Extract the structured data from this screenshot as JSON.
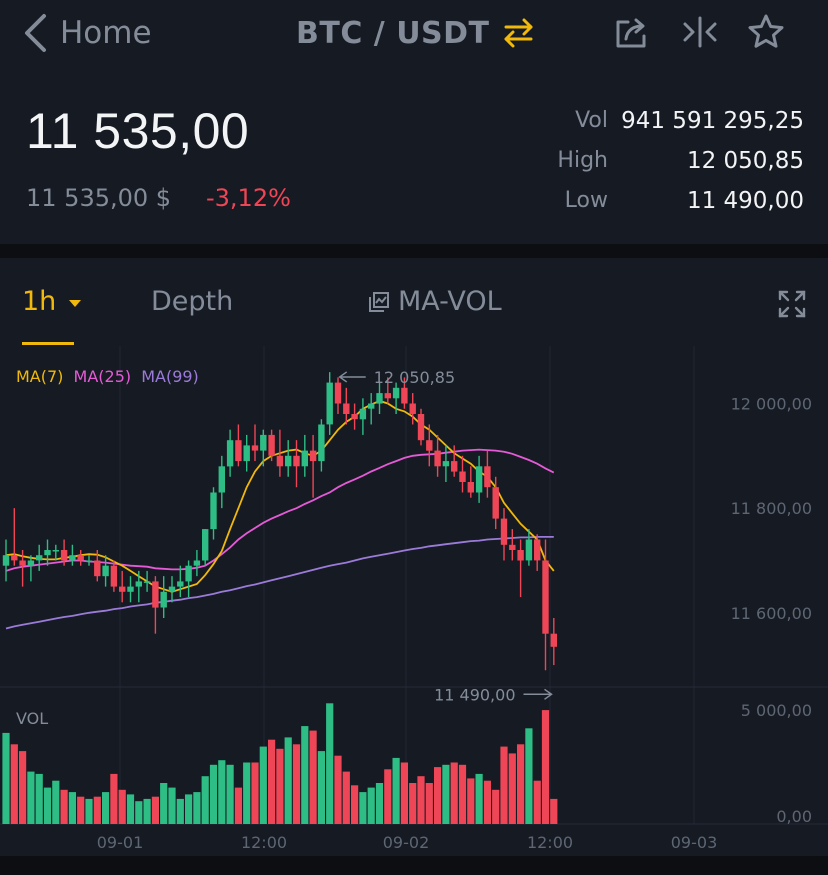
{
  "header": {
    "back_label": "Home",
    "pair": "BTC / USDT",
    "icons": [
      "chevron-left-icon",
      "swap-icon",
      "share-icon",
      "compare-icon",
      "star-icon"
    ]
  },
  "ticker": {
    "last_price": "11 535,00",
    "fiat_price": "11 535,00 $",
    "change": "-3,12%",
    "vol_label": "Vol",
    "vol_value": "941 591 295,25",
    "high_label": "High",
    "high_value": "12 050,85",
    "low_label": "Low",
    "low_value": "11 490,00"
  },
  "tabs": {
    "interval": "1h",
    "depth": "Depth",
    "indicator": "MA-VOL"
  },
  "colors": {
    "up": "#2ebd85",
    "down": "#ee4656",
    "ma7": "#f0b90b",
    "ma25": "#e55ad7",
    "ma99": "#9b7bda",
    "accent": "#f0b90b"
  },
  "chart_data": {
    "type": "candlestick",
    "legend": [
      "MA(7)",
      "MA(25)",
      "MA(99)"
    ],
    "y_ticks": [
      "12 000,00",
      "11 800,00",
      "11 600,00"
    ],
    "y_range": [
      11460,
      12110
    ],
    "x_ticks": [
      "09-01",
      "12:00",
      "09-02",
      "12:00",
      "09-03"
    ],
    "high_marker": "12 050,85",
    "low_marker": "11 490,00",
    "candles": [
      [
        11690,
        11740,
        11660,
        11710
      ],
      [
        11710,
        11800,
        11690,
        11700
      ],
      [
        11700,
        11720,
        11650,
        11690
      ],
      [
        11690,
        11710,
        11660,
        11700
      ],
      [
        11700,
        11730,
        11680,
        11710
      ],
      [
        11710,
        11740,
        11690,
        11720
      ],
      [
        11720,
        11730,
        11700,
        11720
      ],
      [
        11720,
        11740,
        11690,
        11700
      ],
      [
        11700,
        11730,
        11690,
        11710
      ],
      [
        11710,
        11720,
        11690,
        11700
      ],
      [
        11700,
        11710,
        11690,
        11700
      ],
      [
        11700,
        11720,
        11660,
        11670
      ],
      [
        11670,
        11710,
        11650,
        11690
      ],
      [
        11690,
        11700,
        11640,
        11650
      ],
      [
        11650,
        11680,
        11620,
        11640
      ],
      [
        11640,
        11670,
        11620,
        11650
      ],
      [
        11650,
        11680,
        11620,
        11660
      ],
      [
        11660,
        11680,
        11640,
        11660
      ],
      [
        11660,
        11670,
        11560,
        11610
      ],
      [
        11610,
        11670,
        11590,
        11640
      ],
      [
        11640,
        11670,
        11620,
        11650
      ],
      [
        11650,
        11690,
        11630,
        11660
      ],
      [
        11660,
        11700,
        11630,
        11690
      ],
      [
        11690,
        11720,
        11670,
        11700
      ],
      [
        11700,
        11760,
        11690,
        11760
      ],
      [
        11760,
        11840,
        11740,
        11830
      ],
      [
        11830,
        11900,
        11800,
        11880
      ],
      [
        11880,
        11950,
        11860,
        11930
      ],
      [
        11930,
        11960,
        11880,
        11890
      ],
      [
        11890,
        11940,
        11870,
        11920
      ],
      [
        11920,
        11960,
        11890,
        11910
      ],
      [
        11910,
        11950,
        11880,
        11940
      ],
      [
        11940,
        11950,
        11890,
        11900
      ],
      [
        11900,
        11950,
        11860,
        11880
      ],
      [
        11880,
        11930,
        11860,
        11900
      ],
      [
        11900,
        11930,
        11840,
        11880
      ],
      [
        11880,
        11940,
        11860,
        11910
      ],
      [
        11910,
        11940,
        11820,
        11890
      ],
      [
        11890,
        11970,
        11870,
        11960
      ],
      [
        11960,
        12060,
        11940,
        12040
      ],
      [
        12040,
        12050,
        11980,
        12000
      ],
      [
        12000,
        12030,
        11960,
        11980
      ],
      [
        11980,
        12000,
        11950,
        11970
      ],
      [
        11970,
        12010,
        11940,
        11990
      ],
      [
        11990,
        12020,
        11960,
        12000
      ],
      [
        12000,
        12040,
        11980,
        12020
      ],
      [
        12020,
        12050,
        12000,
        12010
      ],
      [
        12010,
        12040,
        11980,
        12030
      ],
      [
        12030,
        12050,
        11990,
        12000
      ],
      [
        12000,
        12020,
        11960,
        11980
      ],
      [
        11980,
        11990,
        11920,
        11930
      ],
      [
        11930,
        11960,
        11880,
        11910
      ],
      [
        11910,
        11940,
        11860,
        11880
      ],
      [
        11880,
        11920,
        11850,
        11890
      ],
      [
        11890,
        11920,
        11860,
        11870
      ],
      [
        11870,
        11900,
        11830,
        11850
      ],
      [
        11850,
        11880,
        11820,
        11830
      ],
      [
        11830,
        11900,
        11810,
        11880
      ],
      [
        11880,
        11910,
        11820,
        11840
      ],
      [
        11840,
        11860,
        11760,
        11780
      ],
      [
        11780,
        11800,
        11700,
        11730
      ],
      [
        11730,
        11760,
        11700,
        11720
      ],
      [
        11720,
        11740,
        11630,
        11700
      ],
      [
        11700,
        11760,
        11690,
        11740
      ],
      [
        11740,
        11750,
        11680,
        11700
      ],
      [
        11700,
        11740,
        11490,
        11560
      ],
      [
        11560,
        11590,
        11500,
        11535
      ]
    ],
    "ma7": [
      11710,
      11712,
      11708,
      11705,
      11703,
      11702,
      11702,
      11705,
      11707,
      11710,
      11712,
      11711,
      11706,
      11698,
      11690,
      11680,
      11670,
      11660,
      11650,
      11645,
      11640,
      11645,
      11650,
      11655,
      11672,
      11693,
      11718,
      11760,
      11800,
      11840,
      11870,
      11890,
      11900,
      11905,
      11910,
      11912,
      11905,
      11900,
      11910,
      11930,
      11950,
      11965,
      11975,
      11990,
      11998,
      12005,
      12000,
      11990,
      11985,
      11975,
      11960,
      11950,
      11935,
      11920,
      11905,
      11895,
      11885,
      11870,
      11860,
      11840,
      11810,
      11790,
      11770,
      11755,
      11740,
      11700,
      11680
    ],
    "ma25": [
      11680,
      11685,
      11688,
      11690,
      11692,
      11694,
      11696,
      11698,
      11700,
      11700,
      11698,
      11697,
      11696,
      11694,
      11692,
      11690,
      11689,
      11688,
      11685,
      11684,
      11683,
      11683,
      11684,
      11686,
      11690,
      11700,
      11712,
      11725,
      11740,
      11752,
      11762,
      11772,
      11780,
      11787,
      11794,
      11800,
      11808,
      11815,
      11823,
      11830,
      11840,
      11848,
      11855,
      11862,
      11870,
      11877,
      11884,
      11890,
      11896,
      11900,
      11902,
      11903,
      11904,
      11906,
      11908,
      11910,
      11911,
      11912,
      11911,
      11910,
      11908,
      11904,
      11898,
      11892,
      11885,
      11876,
      11868
    ],
    "ma99": [
      11570,
      11574,
      11577,
      11580,
      11583,
      11586,
      11589,
      11592,
      11594,
      11597,
      11600,
      11602,
      11604,
      11607,
      11609,
      11612,
      11614,
      11616,
      11619,
      11621,
      11623,
      11625,
      11628,
      11630,
      11633,
      11636,
      11640,
      11643,
      11647,
      11651,
      11654,
      11658,
      11662,
      11666,
      11670,
      11674,
      11678,
      11682,
      11686,
      11690,
      11693,
      11696,
      11700,
      11704,
      11707,
      11710,
      11713,
      11716,
      11719,
      11722,
      11724,
      11727,
      11729,
      11731,
      11733,
      11735,
      11737,
      11738,
      11740,
      11741,
      11742,
      11743,
      11744,
      11744,
      11745,
      11745,
      11745
    ],
    "volume_label": "VOL",
    "volume_ticks": [
      "5 000,00",
      "0,00"
    ],
    "volume_range": [
      0,
      5400
    ],
    "volume": [
      4000,
      3500,
      3200,
      2300,
      2200,
      1600,
      1900,
      1500,
      1400,
      1200,
      1100,
      1200,
      1400,
      2200,
      1500,
      1300,
      1000,
      1100,
      1200,
      1800,
      1600,
      1100,
      1300,
      1400,
      2100,
      2600,
      2800,
      2600,
      1600,
      2700,
      2700,
      3400,
      3700,
      3300,
      3800,
      3500,
      4300,
      4100,
      3200,
      5300,
      3000,
      2300,
      1700,
      1400,
      1600,
      1800,
      2400,
      2900,
      2700,
      1800,
      2100,
      1800,
      2500,
      2600,
      2700,
      2600,
      2000,
      2200,
      1900,
      1500,
      3400,
      3100,
      3500,
      4200,
      1900,
      5000,
      1100
    ]
  }
}
